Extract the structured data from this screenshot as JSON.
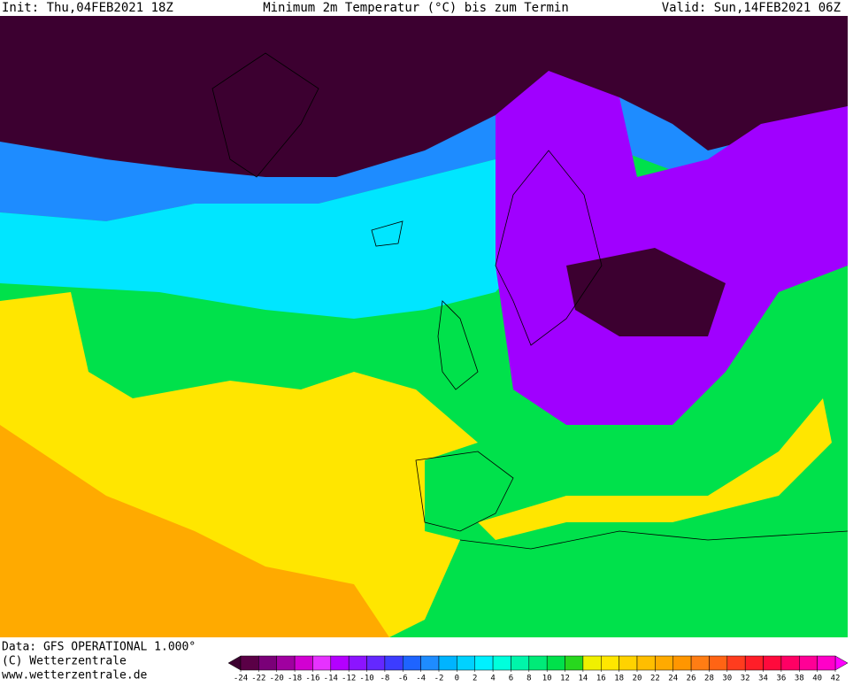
{
  "header": {
    "init": "Init: Thu,04FEB2021 18Z",
    "title": "Minimum 2m Temperatur (°C) bis zum Termin",
    "valid": "Valid: Sun,14FEB2021 06Z"
  },
  "footer": {
    "source": "Data: GFS OPERATIONAL 1.000°",
    "copyright": "(C) Wetterzentrale",
    "url": "www.wetterzentrale.de"
  },
  "legend": {
    "levels": [
      -24,
      -22,
      -20,
      -18,
      -16,
      -14,
      -12,
      -10,
      -8,
      -6,
      -4,
      -2,
      0,
      2,
      4,
      6,
      8,
      10,
      12,
      14,
      16,
      18,
      20,
      22,
      24,
      26,
      28,
      30,
      32,
      34,
      36,
      38,
      40,
      42
    ],
    "colors": [
      "#5a0046",
      "#7a0078",
      "#a000a0",
      "#d200d2",
      "#e632ff",
      "#b400ff",
      "#8c14ff",
      "#6428ff",
      "#3c3cff",
      "#1e64ff",
      "#1e8cff",
      "#00b4ff",
      "#00d2ff",
      "#00f0ff",
      "#00ffdc",
      "#00f5aa",
      "#00eb78",
      "#00e14b",
      "#28d71e",
      "#f0f000",
      "#ffe600",
      "#ffd200",
      "#ffbe00",
      "#ffaa00",
      "#ff9600",
      "#ff7d14",
      "#ff6414",
      "#ff3c1e",
      "#ff1e28",
      "#ff0a3c",
      "#ff0064",
      "#ff0096",
      "#ff00c8"
    ],
    "under_color": "#3c0030",
    "over_color": "#ff00ff"
  }
}
